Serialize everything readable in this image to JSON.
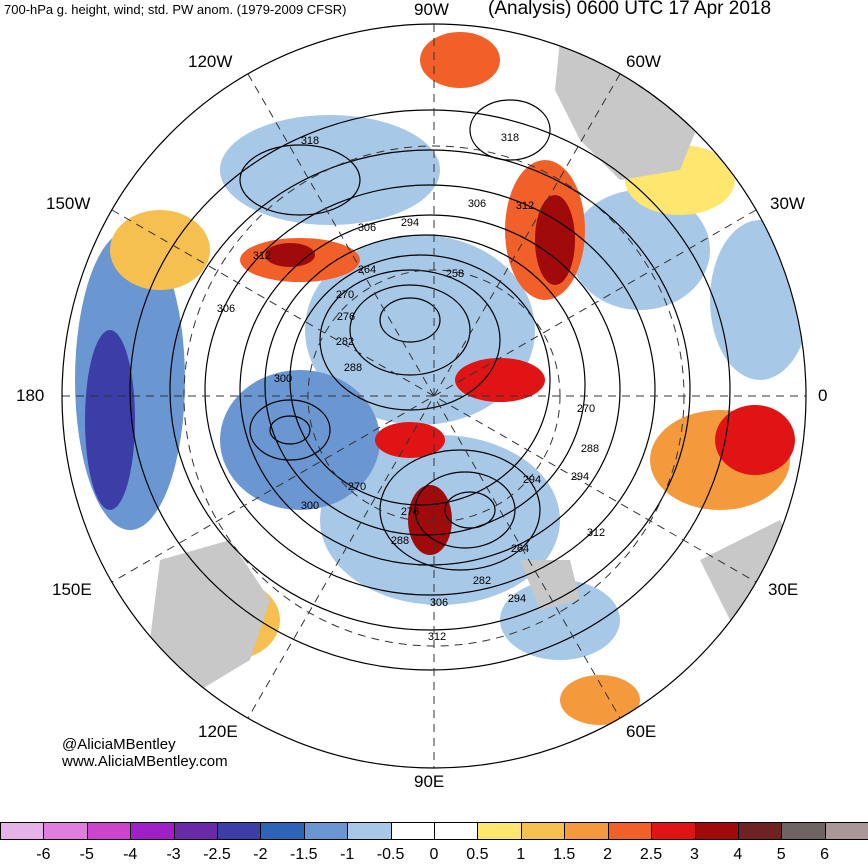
{
  "header": {
    "left": "700-hPa g. height, wind; std. PW anom. (1979-2009 CFSR)",
    "right": "(Analysis) 0600 UTC 17 Apr 2018"
  },
  "map": {
    "longitude_labels": [
      "90W",
      "60W",
      "30W",
      "0",
      "30E",
      "60E",
      "90E",
      "120E",
      "150E",
      "180",
      "150W",
      "120W"
    ],
    "height_labels": [
      "318",
      "318",
      "312",
      "312",
      "306",
      "306",
      "306",
      "300",
      "300",
      "294",
      "294",
      "294",
      "288",
      "288",
      "288",
      "282",
      "282",
      "276",
      "276",
      "270",
      "270",
      "270",
      "264",
      "264",
      "258",
      "312",
      "294",
      "306",
      "312"
    ],
    "colors": {
      "land": "#c8c8c8",
      "contour": "#000000",
      "grid": "#333333",
      "ocean_neutral": "#ffffff"
    }
  },
  "credits": {
    "handle": "@AliciaMBentley",
    "site": "www.AliciaMBentley.com"
  },
  "colorbar": {
    "colors": [
      "#e6b3e6",
      "#e07ee0",
      "#cc44cc",
      "#a020c8",
      "#6a2aa8",
      "#3d3da8",
      "#2e64b8",
      "#6a96d2",
      "#a8c8e8",
      "#ffffff",
      "#ffffff",
      "#ffe66e",
      "#f5c04f",
      "#f59a3c",
      "#f2602a",
      "#e01414",
      "#a00a0a",
      "#6e2222",
      "#6e6464",
      "#a89898"
    ],
    "ticks": [
      "-6",
      "-5",
      "-4",
      "-3",
      "-2.5",
      "-2",
      "-1.5",
      "-1",
      "-0.5",
      "0",
      "0.5",
      "1",
      "1.5",
      "2",
      "2.5",
      "3",
      "4",
      "5",
      "6"
    ]
  }
}
